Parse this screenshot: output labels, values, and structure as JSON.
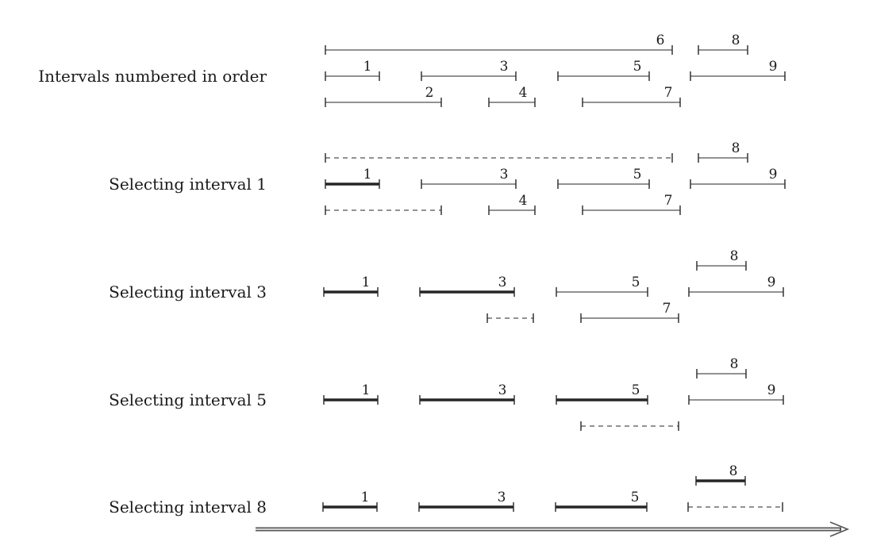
{
  "colors": {
    "ink": "#262626",
    "axis": "#555555",
    "background": "#ffffff"
  },
  "rows": [
    {
      "label": "Intervals numbered in order",
      "intervals": [
        {
          "id": "6",
          "state": "normal"
        },
        {
          "id": "8",
          "state": "normal"
        },
        {
          "id": "1",
          "state": "normal"
        },
        {
          "id": "3",
          "state": "normal"
        },
        {
          "id": "5",
          "state": "normal"
        },
        {
          "id": "9",
          "state": "normal"
        },
        {
          "id": "2",
          "state": "normal"
        },
        {
          "id": "4",
          "state": "normal"
        },
        {
          "id": "7",
          "state": "normal"
        }
      ]
    },
    {
      "label": "Selecting interval 1",
      "intervals": [
        {
          "id": "6",
          "state": "removed",
          "show_number": false
        },
        {
          "id": "8",
          "state": "normal"
        },
        {
          "id": "1",
          "state": "selected"
        },
        {
          "id": "3",
          "state": "normal"
        },
        {
          "id": "5",
          "state": "normal"
        },
        {
          "id": "9",
          "state": "normal"
        },
        {
          "id": "2",
          "state": "removed",
          "show_number": false
        },
        {
          "id": "4",
          "state": "normal"
        },
        {
          "id": "7",
          "state": "normal"
        }
      ]
    },
    {
      "label": "Selecting interval 3",
      "intervals": [
        {
          "id": "8",
          "state": "normal"
        },
        {
          "id": "1",
          "state": "selected"
        },
        {
          "id": "3",
          "state": "selected"
        },
        {
          "id": "5",
          "state": "normal"
        },
        {
          "id": "9",
          "state": "normal"
        },
        {
          "id": "4",
          "state": "removed",
          "show_number": false
        },
        {
          "id": "7",
          "state": "normal"
        }
      ]
    },
    {
      "label": "Selecting interval 5",
      "intervals": [
        {
          "id": "8",
          "state": "normal"
        },
        {
          "id": "1",
          "state": "selected"
        },
        {
          "id": "3",
          "state": "selected"
        },
        {
          "id": "5",
          "state": "selected"
        },
        {
          "id": "9",
          "state": "normal"
        },
        {
          "id": "7",
          "state": "removed",
          "show_number": false
        }
      ]
    },
    {
      "label": "Selecting interval 8",
      "intervals": [
        {
          "id": "8",
          "state": "selected"
        },
        {
          "id": "1",
          "state": "selected"
        },
        {
          "id": "3",
          "state": "selected"
        },
        {
          "id": "5",
          "state": "selected"
        },
        {
          "id": "9",
          "state": "removed",
          "show_number": false
        }
      ]
    }
  ]
}
